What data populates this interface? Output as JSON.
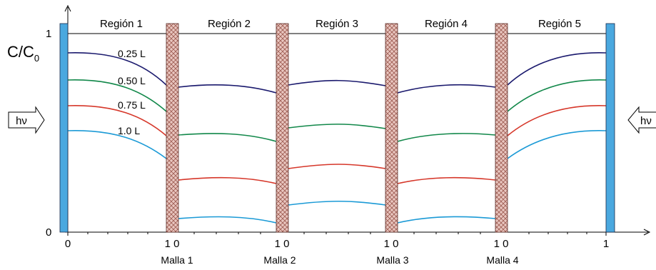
{
  "regions": [
    "Región 1",
    "Región 2",
    "Región 3",
    "Región 4",
    "Región 5"
  ],
  "meshes": [
    "Malla 1",
    "Malla 2",
    "Malla 3",
    "Malla 4"
  ],
  "y_axis": {
    "label_main": "C/C",
    "label_sub": "0",
    "tick_top": "1",
    "tick_bottom": "0"
  },
  "x_ticks": {
    "zero": "0",
    "one": "1",
    "pair": "1 0"
  },
  "light_label": "hν",
  "curve_labels": [
    "0.25 L",
    "0.50 L",
    "0.75 L",
    "1.0 L"
  ],
  "colors": {
    "wall": "#4aa8df",
    "mesh_fill": "#e9c6bf",
    "mesh_hatch": "#9c5a50",
    "series": [
      "#1b1a6e",
      "#12884a",
      "#d6372a",
      "#1b9ad6"
    ]
  }
}
